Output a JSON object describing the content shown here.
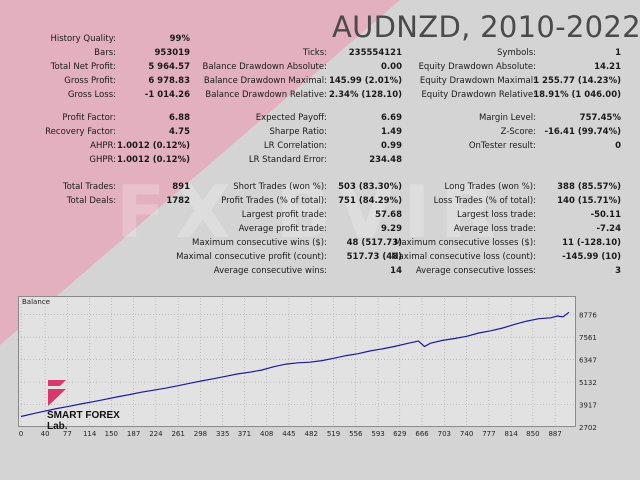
{
  "title": "AUDNZD, 2010-2022",
  "watermark": "FX BVIR",
  "brand": {
    "name": "SMART FOREX Lab."
  },
  "colors": {
    "line": "#1a1aa0",
    "accent_pink": "#e8a4b8",
    "logo": "#d9386e"
  },
  "stats": [
    [
      [
        [
          "History Quality:",
          "99%"
        ],
        [
          "",
          ""
        ],
        [
          "",
          ""
        ]
      ],
      [
        [
          "Bars:",
          "953019"
        ],
        [
          "Ticks:",
          "235554121"
        ],
        [
          "Symbols:",
          "1"
        ]
      ],
      [
        [
          "Total Net Profit:",
          "5 964.57"
        ],
        [
          "Balance Drawdown Absolute:",
          "0.00"
        ],
        [
          "Equity Drawdown Absolute:",
          "14.21"
        ]
      ],
      [
        [
          "Gross Profit:",
          "6 978.83"
        ],
        [
          "Balance Drawdown Maximal:",
          "145.99 (2.01%)"
        ],
        [
          "Equity Drawdown Maximal:",
          "1 255.77 (14.23%)"
        ]
      ],
      [
        [
          "Gross Loss:",
          "-1 014.26"
        ],
        [
          "Balance Drawdown Relative:",
          "2.34% (128.10)"
        ],
        [
          "Equity Drawdown Relative:",
          "18.91% (1 046.00)"
        ]
      ]
    ],
    [
      [
        [
          "Profit Factor:",
          "6.88"
        ],
        [
          "Expected Payoff:",
          "6.69"
        ],
        [
          "Margin Level:",
          "757.45%"
        ]
      ],
      [
        [
          "Recovery Factor:",
          "4.75"
        ],
        [
          "Sharpe Ratio:",
          "1.49"
        ],
        [
          "Z-Score:",
          "-16.41 (99.74%)"
        ]
      ],
      [
        [
          "AHPR:",
          "1.0012 (0.12%)"
        ],
        [
          "LR Correlation:",
          "0.99"
        ],
        [
          "OnTester result:",
          "0"
        ]
      ],
      [
        [
          "GHPR:",
          "1.0012 (0.12%)"
        ],
        [
          "LR Standard Error:",
          "234.48"
        ],
        [
          "",
          ""
        ]
      ]
    ],
    [
      [
        [
          "Total Trades:",
          "891"
        ],
        [
          "Short Trades (won %):",
          "503 (83.30%)"
        ],
        [
          "Long Trades (won %):",
          "388 (85.57%)"
        ]
      ],
      [
        [
          "Total Deals:",
          "1782"
        ],
        [
          "Profit Trades (% of total):",
          "751 (84.29%)"
        ],
        [
          "Loss Trades (% of total):",
          "140 (15.71%)"
        ]
      ],
      [
        [
          "",
          ""
        ],
        [
          "Largest profit trade:",
          "57.68"
        ],
        [
          "Largest loss trade:",
          "-50.11"
        ]
      ],
      [
        [
          "",
          ""
        ],
        [
          "Average profit trade:",
          "9.29"
        ],
        [
          "Average loss trade:",
          "-7.24"
        ]
      ],
      [
        [
          "",
          ""
        ],
        [
          "Maximum consecutive wins ($):",
          "48 (517.73)"
        ],
        [
          "Maximum consecutive losses ($):",
          "11 (-128.10)"
        ]
      ],
      [
        [
          "",
          ""
        ],
        [
          "Maximal consecutive profit (count):",
          "517.73 (48)"
        ],
        [
          "Maximal consecutive loss (count):",
          "-145.99 (10)"
        ]
      ],
      [
        [
          "",
          ""
        ],
        [
          "Average consecutive wins:",
          "14"
        ],
        [
          "Average consecutive losses:",
          "3"
        ]
      ]
    ]
  ],
  "chart_data": {
    "type": "line",
    "title": "Balance",
    "xlabel": "",
    "ylabel": "",
    "x_ticks": [
      "0",
      "40",
      "77",
      "114",
      "150",
      "187",
      "224",
      "261",
      "298",
      "335",
      "371",
      "408",
      "445",
      "482",
      "519",
      "556",
      "593",
      "629",
      "666",
      "703",
      "740",
      "777",
      "814",
      "850",
      "887"
    ],
    "y_ticks": [
      "8776",
      "7561",
      "6347",
      "5132",
      "3917",
      "2702"
    ],
    "xlim": [
      0,
      920
    ],
    "ylim": [
      2702,
      9130
    ],
    "grid": true,
    "series": [
      {
        "name": "",
        "x": [
          0,
          20,
          40,
          60,
          80,
          100,
          120,
          140,
          160,
          180,
          200,
          220,
          240,
          260,
          280,
          300,
          320,
          340,
          360,
          380,
          400,
          420,
          440,
          460,
          480,
          500,
          520,
          540,
          560,
          580,
          600,
          620,
          640,
          660,
          670,
          680,
          700,
          720,
          740,
          760,
          780,
          800,
          820,
          840,
          860,
          880,
          891,
          900,
          910
        ],
        "y": [
          3270,
          3420,
          3560,
          3700,
          3820,
          3950,
          4070,
          4200,
          4330,
          4450,
          4580,
          4690,
          4800,
          4930,
          5060,
          5190,
          5310,
          5440,
          5570,
          5660,
          5780,
          5960,
          6100,
          6170,
          6200,
          6290,
          6420,
          6560,
          6660,
          6810,
          6920,
          7050,
          7200,
          7350,
          7050,
          7230,
          7380,
          7480,
          7600,
          7780,
          7900,
          8050,
          8250,
          8420,
          8550,
          8600,
          8700,
          8650,
          8900
        ]
      }
    ]
  }
}
